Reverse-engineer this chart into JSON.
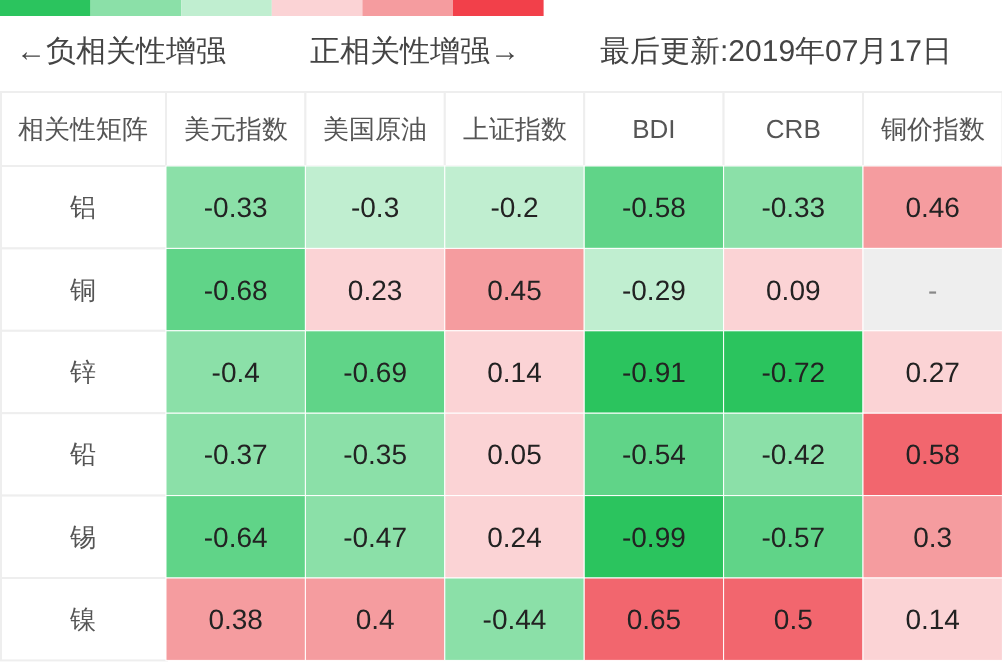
{
  "chart_data": [
    {
      "type": "other",
      "annotations": [
        "←负相关性增强",
        "正相关性增强→",
        "最后更新:2019年07月17日"
      ],
      "colors": [
        "#2bc45e",
        "#8be0a8",
        "#c0eed0",
        "#fbd3d5",
        "#f59c9f",
        "#f2404a"
      ]
    },
    {
      "type": "heatmap",
      "legend_title": "相关性矩阵",
      "categories": [
        "美元指数",
        "美国原油",
        "上证指数",
        "BDI",
        "CRB",
        "铜价指数"
      ],
      "y_categories": [
        "铝",
        "铜",
        "锌",
        "铅",
        "锡",
        "镍"
      ],
      "cells": [
        [
          -0.33,
          -0.3,
          -0.2,
          -0.58,
          -0.33,
          0.46
        ],
        [
          -0.68,
          0.23,
          0.45,
          -0.29,
          0.09,
          null
        ],
        [
          -0.4,
          -0.69,
          0.14,
          -0.91,
          -0.72,
          0.27
        ],
        [
          -0.37,
          -0.35,
          0.05,
          -0.54,
          -0.42,
          0.58
        ],
        [
          -0.64,
          -0.47,
          0.24,
          -0.99,
          -0.57,
          0.3
        ],
        [
          0.38,
          0.4,
          -0.44,
          0.65,
          0.5,
          0.14
        ]
      ],
      "annotations": [
        "-"
      ],
      "colors": [
        [
          "#8be0a8",
          "#c0eed0",
          "#c0eed0",
          "#60d488",
          "#8be0a8",
          "#f59c9f"
        ],
        [
          "#60d488",
          "#fbd3d5",
          "#f59c9f",
          "#c0eed0",
          "#fbd3d5",
          "#eeeeee"
        ],
        [
          "#8be0a8",
          "#60d488",
          "#fbd3d5",
          "#2bc45e",
          "#2bc45e",
          "#fbd3d5"
        ],
        [
          "#8be0a8",
          "#8be0a8",
          "#fbd3d5",
          "#60d488",
          "#8be0a8",
          "#f2666e"
        ],
        [
          "#60d488",
          "#8be0a8",
          "#fbd3d5",
          "#2bc45e",
          "#60d488",
          "#f59c9f"
        ],
        [
          "#f59c9f",
          "#f59c9f",
          "#8be0a8",
          "#f2666e",
          "#f2666e",
          "#fbd3d5"
        ]
      ],
      "data_labels": true
    }
  ]
}
